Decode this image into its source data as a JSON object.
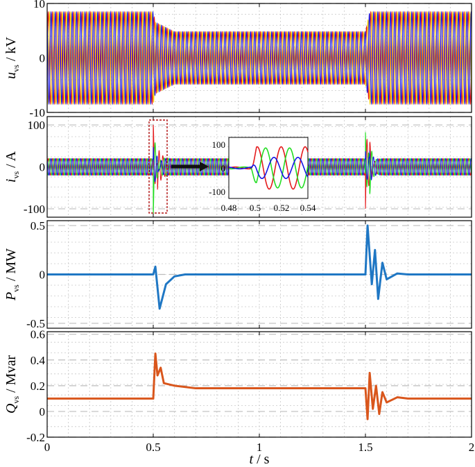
{
  "chart_data": [
    {
      "type": "line",
      "id": "uvs",
      "ylabel_var": "u",
      "ylabel_sub": "vs",
      "ylabel_unit": " / kV",
      "ylim": [
        -10,
        10
      ],
      "xlim": [
        0,
        2
      ],
      "yticks": [
        10,
        0,
        -10
      ],
      "ytick_labels": [
        "10",
        "0",
        "-10"
      ],
      "grid": true,
      "series": [
        {
          "color": "#e41a1c",
          "values": [
            [
              0,
              8.4
            ],
            [
              0.5,
              8.4
            ],
            [
              0.51,
              6.5
            ],
            [
              0.6,
              4.8
            ],
            [
              1.5,
              4.8
            ],
            [
              1.52,
              8.4
            ],
            [
              2,
              8.4
            ]
          ]
        },
        {
          "color": "#f5d000",
          "values": [
            [
              0,
              8.4
            ],
            [
              0.5,
              8.4
            ],
            [
              0.51,
              6.5
            ],
            [
              0.6,
              4.8
            ],
            [
              1.5,
              4.8
            ],
            [
              1.52,
              8.4
            ],
            [
              2,
              8.4
            ]
          ]
        },
        {
          "color": "#1414e6",
          "values": [
            [
              0,
              8.4
            ],
            [
              0.5,
              8.4
            ],
            [
              0.51,
              6.5
            ],
            [
              0.6,
              4.8
            ],
            [
              1.5,
              4.8
            ],
            [
              1.52,
              8.4
            ],
            [
              2,
              8.4
            ]
          ]
        }
      ]
    },
    {
      "type": "line",
      "id": "ivs",
      "ylabel_var": "i",
      "ylabel_sub": "vs",
      "ylabel_unit": " / A",
      "ylim": [
        -120,
        120
      ],
      "xlim": [
        0,
        2
      ],
      "yticks": [
        100,
        0,
        -100
      ],
      "ytick_labels": [
        "100",
        "0",
        "-100"
      ],
      "grid": true,
      "series": [
        {
          "color": "#e41a1c",
          "peaks": [
            [
              0.5,
              100
            ],
            [
              0.52,
              -60
            ],
            [
              1.5,
              -100
            ],
            [
              1.52,
              60
            ]
          ]
        },
        {
          "color": "#22dd22",
          "peaks": [
            [
              0.5,
              -95
            ],
            [
              0.52,
              40
            ],
            [
              1.5,
              100
            ],
            [
              1.52,
              -50
            ]
          ]
        },
        {
          "color": "#1414e6",
          "peaks": [
            [
              0.5,
              30
            ],
            [
              0.52,
              -30
            ],
            [
              1.5,
              20
            ],
            [
              1.52,
              20
            ]
          ]
        }
      ],
      "steady_amplitude": 20,
      "inset": {
        "xlim": [
          0.48,
          0.54
        ],
        "ylim": [
          -130,
          130
        ],
        "xticks": [
          0.48,
          0.5,
          0.52,
          0.54
        ],
        "xtick_labels": [
          "0.48",
          "0.5",
          "0.52",
          "0.54"
        ],
        "yticks": [
          100,
          0,
          -100
        ],
        "ytick_labels": [
          "100",
          "0",
          "-100"
        ]
      }
    },
    {
      "type": "line",
      "id": "pvs",
      "ylabel_var": "P",
      "ylabel_sub": "vs",
      "ylabel_unit": " / MW",
      "ylim": [
        -0.55,
        0.55
      ],
      "xlim": [
        0,
        2
      ],
      "yticks": [
        0.5,
        0,
        -0.5
      ],
      "ytick_labels": [
        "0.5",
        "0",
        "-0.5"
      ],
      "grid": true,
      "series": [
        {
          "color": "#1f77c4",
          "values": [
            [
              0,
              0
            ],
            [
              0.5,
              0
            ],
            [
              0.51,
              0.08
            ],
            [
              0.53,
              -0.35
            ],
            [
              0.56,
              -0.1
            ],
            [
              0.6,
              -0.02
            ],
            [
              0.65,
              0
            ],
            [
              1.5,
              0
            ],
            [
              1.51,
              0.5
            ],
            [
              1.53,
              -0.1
            ],
            [
              1.545,
              0.25
            ],
            [
              1.56,
              -0.25
            ],
            [
              1.58,
              0.12
            ],
            [
              1.6,
              -0.05
            ],
            [
              1.65,
              0.01
            ],
            [
              1.7,
              0
            ],
            [
              2,
              0
            ]
          ]
        }
      ]
    },
    {
      "type": "line",
      "id": "qvs",
      "ylabel_var": "Q",
      "ylabel_sub": "vs",
      "ylabel_unit": " / Mvar",
      "ylim": [
        -0.2,
        0.62
      ],
      "xlim": [
        0,
        2
      ],
      "yticks": [
        0.6,
        0.4,
        0.2,
        0,
        -0.2
      ],
      "ytick_labels": [
        "0.6",
        "0.4",
        "0.2",
        "0",
        "-0.2"
      ],
      "xticks": [
        0,
        0.5,
        1,
        1.5,
        2
      ],
      "xtick_labels": [
        "0",
        "0.5",
        "1",
        "1.5",
        "2"
      ],
      "xlabel_var": "t",
      "xlabel_unit": " / s",
      "grid": true,
      "series": [
        {
          "color": "#d9561c",
          "values": [
            [
              0,
              0.1
            ],
            [
              0.5,
              0.1
            ],
            [
              0.51,
              0.45
            ],
            [
              0.52,
              0.28
            ],
            [
              0.535,
              0.34
            ],
            [
              0.55,
              0.22
            ],
            [
              0.6,
              0.2
            ],
            [
              0.7,
              0.18
            ],
            [
              1.5,
              0.18
            ],
            [
              1.51,
              -0.06
            ],
            [
              1.52,
              0.3
            ],
            [
              1.535,
              0.02
            ],
            [
              1.55,
              0.2
            ],
            [
              1.565,
              -0.02
            ],
            [
              1.58,
              0.15
            ],
            [
              1.6,
              0.07
            ],
            [
              1.65,
              0.11
            ],
            [
              1.7,
              0.1
            ],
            [
              2,
              0.1
            ]
          ]
        }
      ]
    }
  ]
}
